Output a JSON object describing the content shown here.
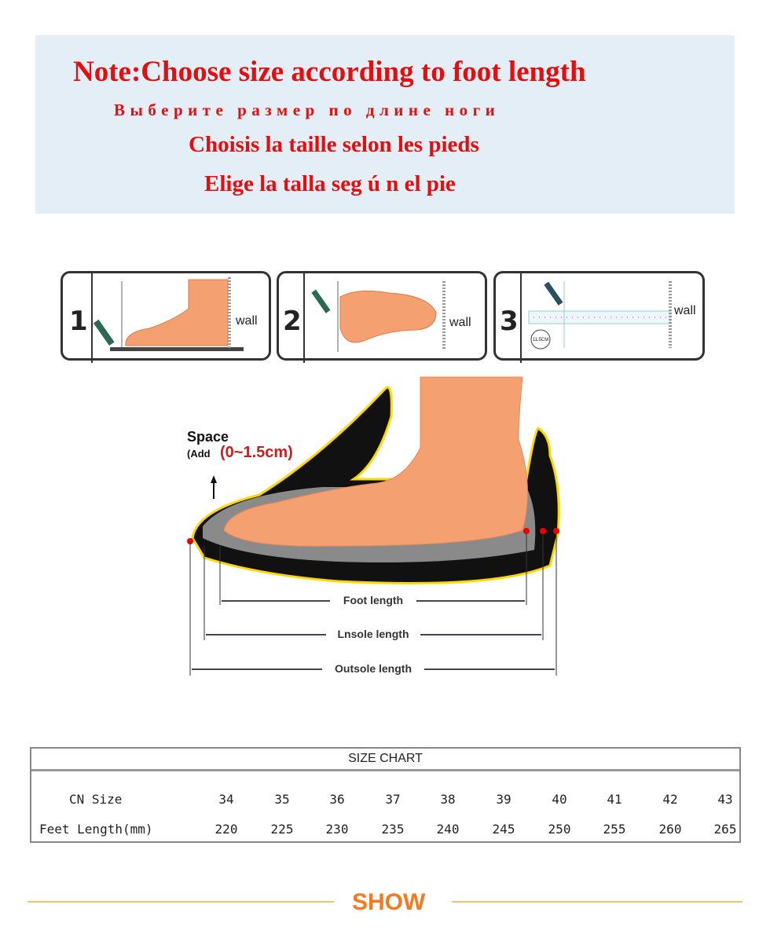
{
  "note": {
    "english": "Note:Choose size according to foot length",
    "russian": "Выберите размер по длине ноги",
    "french": "Choisis la taille selon les pieds",
    "spanish": "Elige la talla seg ú n el pie"
  },
  "steps": [
    {
      "number": "1",
      "label": "wall"
    },
    {
      "number": "2",
      "label": "wall"
    },
    {
      "number": "3",
      "label": "wall",
      "ruler_mark": "11.5CM"
    }
  ],
  "diagram": {
    "space_label": "Space",
    "add_label": "(Add",
    "add_range": "(0~1.5cm)",
    "foot_length": "Foot length",
    "insole_length": "Lnsole length",
    "outsole_length": "Outsole length"
  },
  "size_chart": {
    "title": "SIZE CHART",
    "rows": [
      {
        "label": "CN Size",
        "values": [
          "34",
          "35",
          "36",
          "37",
          "38",
          "39",
          "40",
          "41",
          "42",
          "43"
        ]
      },
      {
        "label": "Feet Length(mm)",
        "values": [
          "220",
          "225",
          "230",
          "235",
          "240",
          "245",
          "250",
          "255",
          "260",
          "265"
        ]
      }
    ]
  },
  "footer": {
    "show_label": "SHOW"
  },
  "colors": {
    "note_text": "#e50d0d",
    "note_bg": "#e4eef7",
    "show": "#f47a20",
    "foot": "#f4a070"
  }
}
